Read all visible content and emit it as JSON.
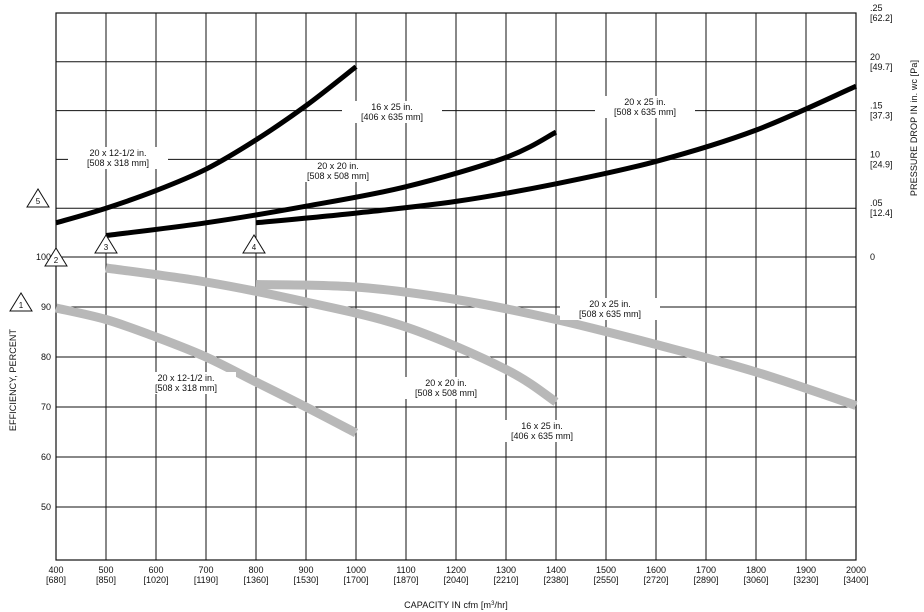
{
  "chart_data": {
    "type": "line",
    "xlabel": "CAPACITY IN cfm [m",
    "xlabel_sup": "3",
    "xlabel_tail": "/hr]",
    "ylabel_left": "EFFICIENCY, PERCENT",
    "ylabel_right": "PRESSURE DROP IN in. wc [Pa]",
    "xlim": [
      400,
      2000
    ],
    "x_ticks": [
      {
        "v": 400,
        "main": "400",
        "sub": "[680]"
      },
      {
        "v": 500,
        "main": "500",
        "sub": "[850]"
      },
      {
        "v": 600,
        "main": "600",
        "sub": "[1020]"
      },
      {
        "v": 700,
        "main": "700",
        "sub": "[1190]"
      },
      {
        "v": 800,
        "main": "800",
        "sub": "[1360]"
      },
      {
        "v": 900,
        "main": "900",
        "sub": "[1530]"
      },
      {
        "v": 1000,
        "main": "1000",
        "sub": "[1700]"
      },
      {
        "v": 1100,
        "main": "1100",
        "sub": "[1870]"
      },
      {
        "v": 1200,
        "main": "1200",
        "sub": "[2040]"
      },
      {
        "v": 1300,
        "main": "1300",
        "sub": "[2210]"
      },
      {
        "v": 1400,
        "main": "1400",
        "sub": "[2380]"
      },
      {
        "v": 1500,
        "main": "1500",
        "sub": "[2550]"
      },
      {
        "v": 1600,
        "main": "1600",
        "sub": "[2720]"
      },
      {
        "v": 1700,
        "main": "1700",
        "sub": "[2890]"
      },
      {
        "v": 1800,
        "main": "1800",
        "sub": "[3060]"
      },
      {
        "v": 1900,
        "main": "1900",
        "sub": "[3230]"
      },
      {
        "v": 2000,
        "main": "2000",
        "sub": "[3400]"
      }
    ],
    "efficiency_axis": {
      "ylim": [
        40,
        100
      ],
      "ticks": [
        "50",
        "60",
        "70",
        "80",
        "90",
        "100"
      ]
    },
    "pressure_axis": {
      "ylim": [
        0,
        0.25
      ],
      "ticks": [
        {
          "v": 0,
          "main": "0",
          "sub": ""
        },
        {
          "v": 0.05,
          "main": ".05",
          "sub": "[12.4]"
        },
        {
          "v": 0.1,
          "main": "10",
          "sub": "[24.9]"
        },
        {
          "v": 0.15,
          "main": ".15",
          "sub": "[37.3]"
        },
        {
          "v": 0.2,
          "main": "20",
          "sub": "[49.7]"
        },
        {
          "v": 0.25,
          "main": ".25",
          "sub": "[62.2]"
        }
      ]
    },
    "grid": true,
    "markers": [
      "1",
      "2",
      "3",
      "4",
      "5"
    ],
    "pressure_series": [
      {
        "name": "20 x 12-1/2 in.",
        "sub": "[508 x 318 mm]",
        "points": [
          [
            400,
            0.035
          ],
          [
            500,
            0.05
          ],
          [
            600,
            0.068
          ],
          [
            700,
            0.09
          ],
          [
            800,
            0.12
          ],
          [
            900,
            0.155
          ],
          [
            1000,
            0.195
          ]
        ]
      },
      {
        "name": "20 x 20 in.",
        "sub": "[508 x 508 mm]",
        "points": [
          [
            500,
            0.022
          ],
          [
            700,
            0.035
          ],
          [
            900,
            0.052
          ],
          [
            1100,
            0.072
          ],
          [
            1300,
            0.102
          ],
          [
            1400,
            0.128
          ]
        ]
      },
      {
        "name": "16 x 25 in.",
        "sub": "[406 x 635 mm]",
        "points": []
      },
      {
        "name": "20 x 25 in.",
        "sub": "[508 x 635 mm]",
        "points": [
          [
            800,
            0.035
          ],
          [
            1000,
            0.045
          ],
          [
            1200,
            0.057
          ],
          [
            1400,
            0.075
          ],
          [
            1600,
            0.098
          ],
          [
            1800,
            0.13
          ],
          [
            2000,
            0.175
          ]
        ]
      }
    ],
    "efficiency_series": [
      {
        "name": "20 x 12-1/2 in.",
        "sub": "[508 x 318 mm]",
        "points": [
          [
            400,
            89.8
          ],
          [
            500,
            87.5
          ],
          [
            600,
            84
          ],
          [
            700,
            80
          ],
          [
            800,
            75
          ],
          [
            900,
            70
          ],
          [
            1000,
            64.8
          ]
        ]
      },
      {
        "name": "20 x 20 in.",
        "sub": "[508 x 508 mm]",
        "points": []
      },
      {
        "name": "16 x 25 in.",
        "sub": "[406 x 635 mm]",
        "points": [
          [
            500,
            97.8
          ],
          [
            700,
            95
          ],
          [
            900,
            91
          ],
          [
            1100,
            86
          ],
          [
            1300,
            77.5
          ],
          [
            1400,
            71
          ]
        ]
      },
      {
        "name": "20 x 25 in.",
        "sub": "[508 x 635 mm]",
        "points": [
          [
            800,
            94.5
          ],
          [
            1000,
            94
          ],
          [
            1200,
            91.5
          ],
          [
            1400,
            87.5
          ],
          [
            1600,
            82.5
          ],
          [
            1800,
            77
          ],
          [
            2000,
            70.3
          ]
        ]
      }
    ]
  }
}
